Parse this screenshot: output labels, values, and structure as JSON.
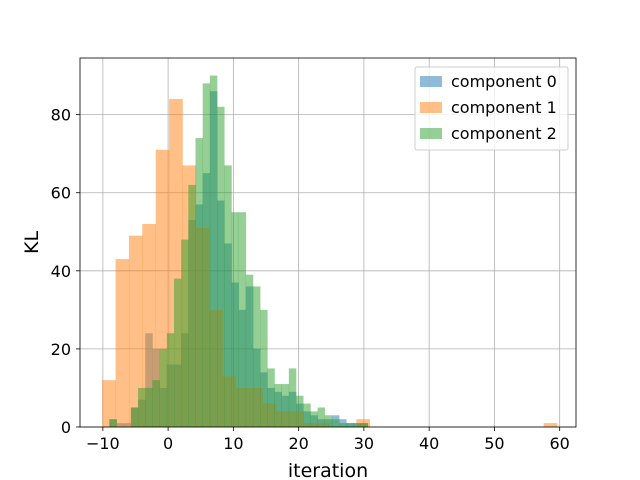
{
  "chart_data": {
    "type": "histogram",
    "xlabel": "iteration",
    "ylabel": "KL",
    "xlim": [
      -13.5,
      62.5
    ],
    "ylim": [
      0,
      94.5
    ],
    "xticks": [
      -10,
      0,
      10,
      20,
      30,
      40,
      50,
      60
    ],
    "yticks": [
      0,
      20,
      40,
      60,
      80
    ],
    "grid": true,
    "legend_position": "top-right",
    "series": [
      {
        "name": "component 0",
        "color": "#1f77b4",
        "opacity": 0.5,
        "bin_start": -9,
        "bin_width": 1.1,
        "counts": [
          2,
          1,
          1,
          5,
          7,
          24,
          20,
          10,
          16,
          16,
          24,
          53,
          57,
          65,
          86,
          58,
          47,
          37,
          30,
          36,
          20,
          14,
          10,
          9,
          8,
          9,
          6,
          4,
          3,
          2,
          2,
          3,
          2,
          1,
          1,
          1
        ]
      },
      {
        "name": "component 1",
        "color": "#ff7f0e",
        "opacity": 0.5,
        "bin_start": -10.1,
        "bin_width": 2.05,
        "counts": [
          12,
          43,
          49,
          52,
          71,
          84,
          67,
          51,
          30,
          13,
          10,
          10,
          6,
          4,
          4,
          1,
          1,
          0,
          0,
          2,
          0,
          0,
          0,
          0,
          0,
          0,
          0,
          0,
          0,
          0,
          0,
          0,
          0,
          1
        ]
      },
      {
        "name": "component 2",
        "color": "#2ca02c",
        "opacity": 0.5,
        "bin_start": -9,
        "bin_width": 1.1,
        "counts": [
          2,
          0,
          0,
          5,
          10,
          10,
          12,
          20,
          24,
          38,
          48,
          62,
          74,
          88,
          90,
          82,
          67,
          55,
          55,
          39,
          36,
          30,
          15,
          11,
          11,
          15,
          8,
          6,
          4,
          5,
          3,
          2,
          1,
          1,
          1,
          1
        ]
      }
    ]
  }
}
